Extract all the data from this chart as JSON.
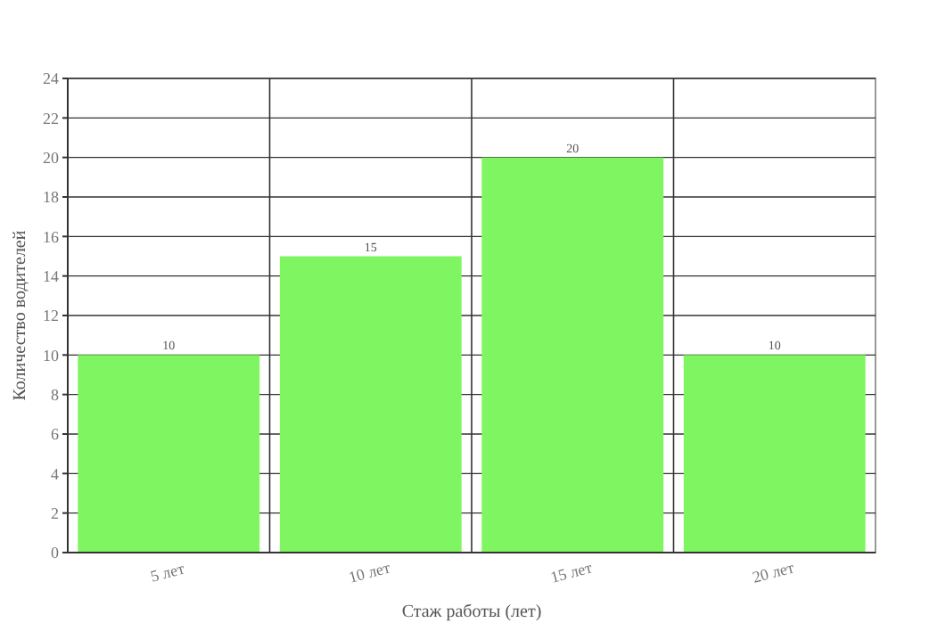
{
  "chart_data": {
    "type": "bar",
    "xlabel": "Стаж работы (лет)",
    "ylabel": "Количество водителей",
    "categories": [
      "5 лет",
      "10 лет",
      "15 лет",
      "20 лет"
    ],
    "values": [
      10,
      15,
      20,
      10
    ],
    "color": "#80f562",
    "ylim": [
      0,
      24
    ],
    "yticks": [
      0,
      2,
      4,
      6,
      8,
      10,
      12,
      14,
      16,
      18,
      20,
      22,
      24
    ],
    "grid": true,
    "data_labels": true
  }
}
